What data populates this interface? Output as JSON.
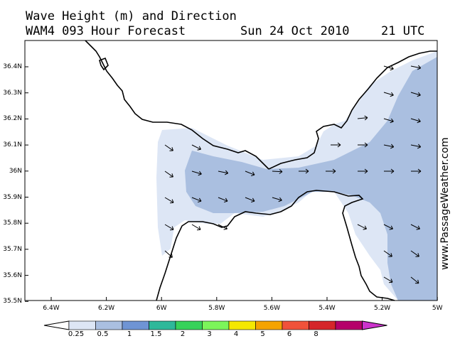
{
  "title": {
    "line1": "Wave Height (m) and Direction",
    "line2": "WAM4 093 Hour Forecast",
    "date": "Sun 24 Oct 2010",
    "time": "21 UTC"
  },
  "watermark": "www.PassageWeather.com",
  "axes": {
    "y_labels": [
      "36.4N",
      "36.3N",
      "36.2N",
      "36.1N",
      "36N",
      "35.9N",
      "35.8N",
      "35.7N",
      "35.6N",
      "35.5N"
    ],
    "x_labels": [
      "6.4W",
      "6.2W",
      "6W",
      "5.8W",
      "5.6W",
      "5.4W",
      "5.2W",
      "5W"
    ]
  },
  "colorbar": {
    "labels": [
      "0.25",
      "0.5",
      "1",
      "1.5",
      "2",
      "3",
      "4",
      "5",
      "6",
      "8"
    ],
    "colors": [
      "#ffffff",
      "#dde6f5",
      "#aabfe0",
      "#6f94d4",
      "#2eb89a",
      "#37d25a",
      "#7cf55a",
      "#f5e800",
      "#f5a300",
      "#f0523a",
      "#d5262a",
      "#b5006a",
      "#cc33cc"
    ]
  },
  "colors": {
    "band_025_05": "#dde6f5",
    "band_05_1": "#aabfe0",
    "land": "#ffffff",
    "coast": "#000000"
  }
}
